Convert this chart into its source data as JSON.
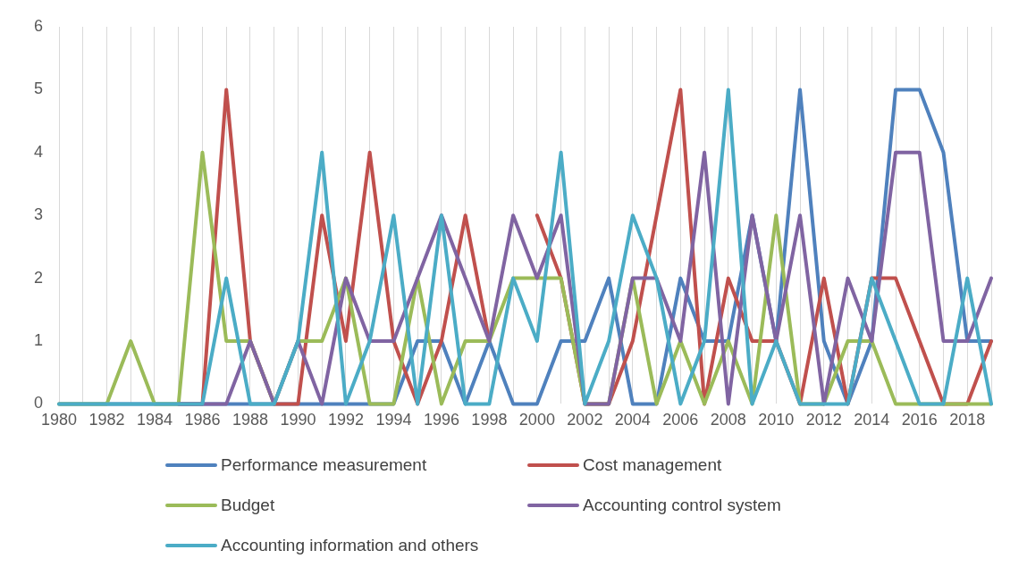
{
  "chart_data": {
    "type": "line",
    "categories": [
      "1980",
      null,
      "1982",
      null,
      "1984",
      null,
      "1986",
      null,
      "1988",
      null,
      "1990",
      null,
      "1992",
      null,
      "1994",
      null,
      "1996",
      null,
      "1998",
      null,
      "2000",
      null,
      "2002",
      null,
      "2004",
      null,
      "2006",
      null,
      "2008",
      null,
      "2010",
      null,
      "2012",
      null,
      "2014",
      null,
      "2016",
      null,
      "2018",
      null
    ],
    "series": [
      {
        "name": "Performance measurement",
        "color": "#4f81bd",
        "values": [
          0,
          0,
          0,
          0,
          0,
          0,
          0,
          0,
          0,
          0,
          0,
          0,
          0,
          0,
          0,
          1,
          1,
          0,
          1,
          0,
          0,
          1,
          1,
          2,
          0,
          0,
          2,
          1,
          1,
          3,
          1,
          5,
          1,
          0,
          1,
          5,
          5,
          4,
          1,
          1
        ]
      },
      {
        "name": "Cost management",
        "color": "#c0504d",
        "values": [
          null,
          null,
          null,
          null,
          null,
          0,
          0,
          5,
          1,
          0,
          0,
          3,
          1,
          4,
          1,
          0,
          1,
          3,
          1,
          null,
          3,
          2,
          0,
          0,
          1,
          3,
          5,
          0,
          2,
          1,
          1,
          0,
          2,
          0,
          2,
          2,
          1,
          0,
          0,
          1
        ]
      },
      {
        "name": "Budget",
        "color": "#9bbb59",
        "values": [
          0,
          0,
          0,
          1,
          0,
          0,
          4,
          1,
          1,
          0,
          1,
          1,
          2,
          0,
          0,
          2,
          0,
          1,
          1,
          2,
          2,
          2,
          0,
          0,
          2,
          0,
          1,
          0,
          1,
          0,
          3,
          0,
          0,
          1,
          1,
          0,
          0,
          0,
          0,
          0
        ]
      },
      {
        "name": "Accounting control system",
        "color": "#8064a2",
        "values": [
          null,
          null,
          null,
          null,
          null,
          0,
          0,
          0,
          1,
          0,
          1,
          0,
          2,
          1,
          1,
          2,
          3,
          2,
          1,
          3,
          2,
          3,
          0,
          0,
          2,
          2,
          1,
          4,
          0,
          3,
          1,
          3,
          0,
          2,
          1,
          4,
          4,
          1,
          1,
          2
        ]
      },
      {
        "name": "Accounting information and others",
        "color": "#4bacc6",
        "values": [
          0,
          0,
          0,
          0,
          0,
          0,
          0,
          2,
          0,
          0,
          1,
          4,
          0,
          1,
          3,
          0,
          3,
          0,
          0,
          2,
          1,
          4,
          0,
          1,
          3,
          2,
          0,
          1,
          5,
          0,
          1,
          0,
          0,
          0,
          2,
          1,
          0,
          0,
          2,
          0
        ]
      }
    ],
    "ylim": [
      0,
      6
    ],
    "yticks": [
      0,
      1,
      2,
      3,
      4,
      5,
      6
    ],
    "grid": "x",
    "legend": "bottom",
    "marker": "none",
    "line_style": "solid"
  }
}
